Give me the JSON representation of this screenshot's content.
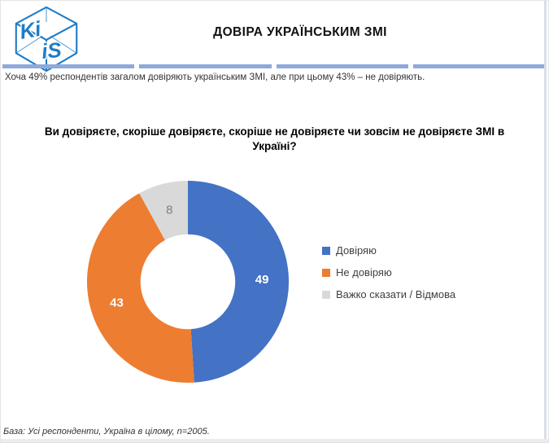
{
  "slide": {
    "title": "ДОВІРА УКРАЇНСЬКИМ ЗМІ",
    "subtitle": "Хоча 49% респондентів загалом довіряють українським ЗМІ, але при цьому 43% – не довіряють.",
    "question": "Ви довіряєте, скоріше довіряєте, скоріше не довіряєте чи зовсім не довіряєте ЗМІ в Україні?",
    "footer": "База: Усі респонденти, Україна в цілому, n=2005.",
    "logo": {
      "text_top": "Ki",
      "text_front": "iS"
    }
  },
  "colors": {
    "accent_bar": "#8EA9DB",
    "logo_blue": "#1E7CC6",
    "text_dark": "#333333"
  },
  "chart_data": {
    "type": "pie",
    "subtype": "donut",
    "title": "Ви довіряєте, скоріше довіряєте, скоріше не довіряєте чи зовсім не довіряєте ЗМІ в Україні?",
    "categories": [
      "Довіряю",
      "Не довіряю",
      "Важко сказати / Відмова"
    ],
    "values": [
      49,
      43,
      8
    ],
    "colors": [
      "#4472C4",
      "#ED7D31",
      "#D9D9D9"
    ],
    "data_label_colors": [
      "#FFFFFF",
      "#FFFFFF",
      "#7F7F7F"
    ],
    "start_angle_deg": 0,
    "direction": "clockwise",
    "inner_radius_ratio": 0.47,
    "legend_position": "right",
    "grid": false
  }
}
